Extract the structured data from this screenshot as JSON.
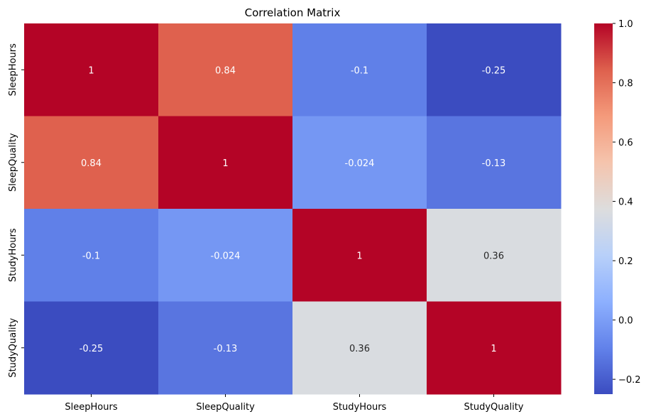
{
  "chart_data": {
    "type": "heatmap",
    "title": "Correlation Matrix",
    "xlabel": "",
    "ylabel": "",
    "x_categories": [
      "SleepHours",
      "SleepQuality",
      "StudyHours",
      "StudyQuality"
    ],
    "y_categories": [
      "SleepHours",
      "SleepQuality",
      "StudyHours",
      "StudyQuality"
    ],
    "matrix": [
      [
        1,
        0.84,
        -0.1,
        -0.25
      ],
      [
        0.84,
        1,
        -0.024,
        -0.13
      ],
      [
        -0.1,
        -0.024,
        1,
        0.36
      ],
      [
        -0.25,
        -0.13,
        0.36,
        1
      ]
    ],
    "annotations": [
      [
        "1",
        "0.84",
        "-0.1",
        "-0.25"
      ],
      [
        "0.84",
        "1",
        "-0.024",
        "-0.13"
      ],
      [
        "-0.1",
        "-0.024",
        "1",
        "0.36"
      ],
      [
        "-0.25",
        "-0.13",
        "0.36",
        "1"
      ]
    ],
    "colormap": "coolwarm",
    "vmin": -0.25,
    "vmax": 1.0,
    "colorbar": {
      "ticks": [
        1.0,
        0.8,
        0.6,
        0.4,
        0.2,
        0.0,
        -0.2
      ],
      "tick_labels": [
        "1.0",
        "0.8",
        "0.6",
        "0.4",
        "0.2",
        "0.0",
        "−0.2"
      ]
    }
  }
}
